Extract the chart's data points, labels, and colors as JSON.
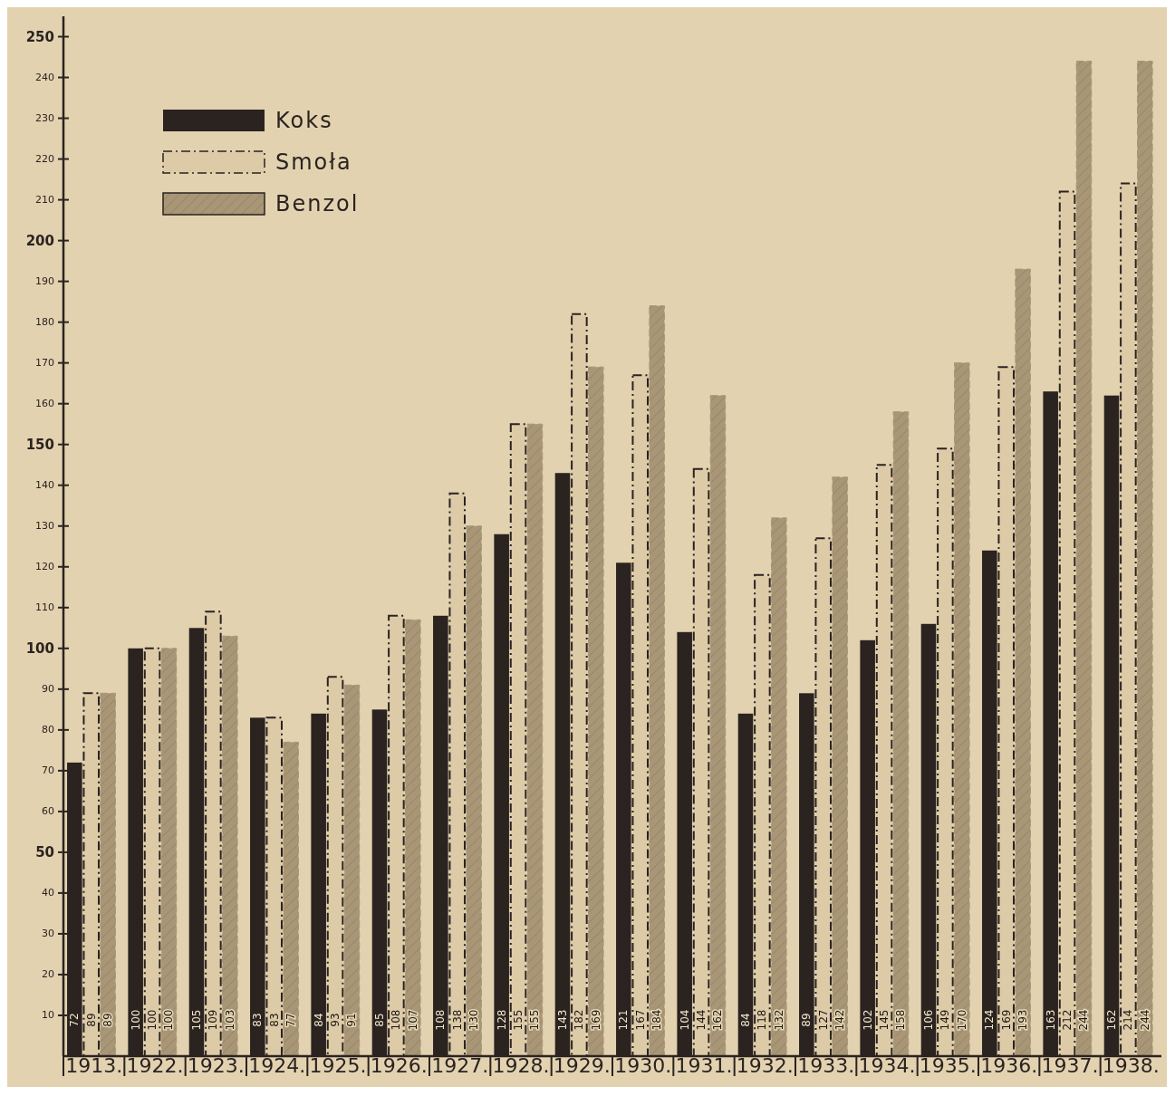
{
  "chart_data": {
    "type": "bar",
    "categories": [
      "1913.",
      "1922.",
      "1923.",
      "1924.",
      "1925.",
      "1926.",
      "1927.",
      "1928.",
      "1929.",
      "1930.",
      "1931.",
      "1932.",
      "1933.",
      "1934.",
      "1935.",
      "1936.",
      "1937.",
      "1938."
    ],
    "series": [
      {
        "name": "Koks",
        "color": "#2a2320",
        "values": [
          72,
          100,
          105,
          83,
          84,
          85,
          108,
          128,
          143,
          121,
          104,
          84,
          89,
          102,
          106,
          124,
          163,
          162
        ]
      },
      {
        "name": "Smoła",
        "color": "#ddcba8",
        "values": [
          89,
          100,
          109,
          83,
          93,
          108,
          138,
          155,
          182,
          167,
          144,
          118,
          127,
          145,
          149,
          169,
          212,
          214
        ]
      },
      {
        "name": "Benzol",
        "color": "#a89676",
        "values": [
          89,
          100,
          103,
          77,
          91,
          107,
          130,
          155,
          169,
          184,
          162,
          132,
          142,
          158,
          170,
          193,
          244,
          244
        ]
      }
    ],
    "ylim": [
      0,
      255
    ],
    "yticks": [
      10,
      20,
      30,
      40,
      50,
      60,
      70,
      80,
      90,
      100,
      110,
      120,
      130,
      140,
      150,
      160,
      170,
      180,
      190,
      200,
      210,
      220,
      230,
      240,
      250
    ],
    "grid": false,
    "legend": "top left",
    "data_labels": true
  }
}
